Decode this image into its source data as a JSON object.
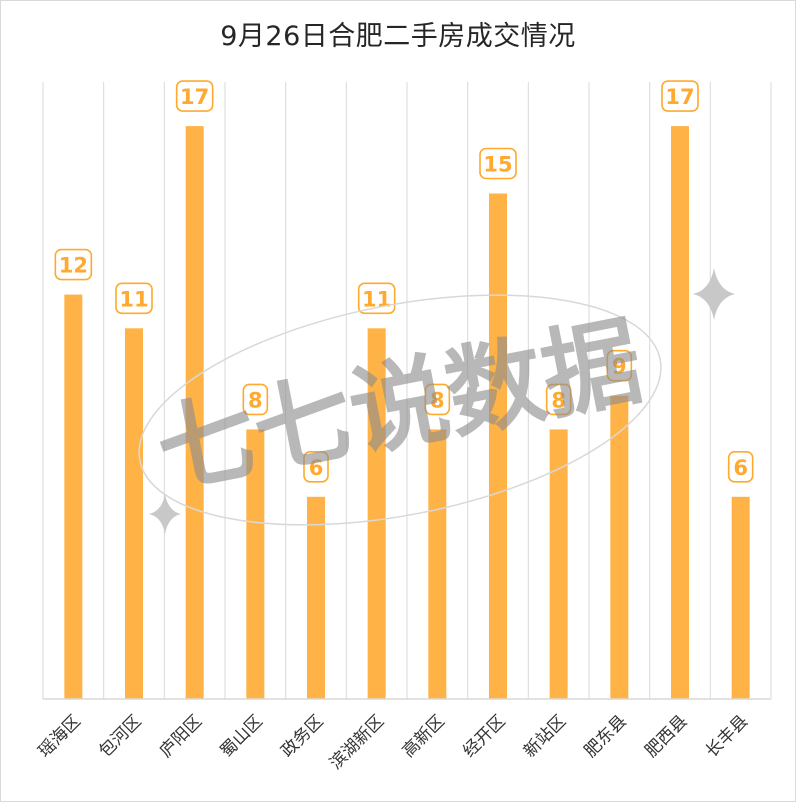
{
  "chart_data": {
    "type": "bar",
    "title": "9月26日合肥二手房成交情况",
    "categories": [
      "瑶海区",
      "包河区",
      "庐阳区",
      "蜀山区",
      "政务区",
      "滨湖新区",
      "高新区",
      "经开区",
      "新站区",
      "肥东县",
      "肥西县",
      "长丰县"
    ],
    "values": [
      12,
      11,
      17,
      8,
      6,
      11,
      8,
      15,
      8,
      9,
      17,
      6
    ],
    "xlabel": "",
    "ylabel": "",
    "ylim": [
      0,
      20
    ],
    "grid": "vertical",
    "legend": "none",
    "bar_color": "#FFB347",
    "label_color": "#FFA92E"
  },
  "watermark": {
    "text": "七七说数据"
  }
}
